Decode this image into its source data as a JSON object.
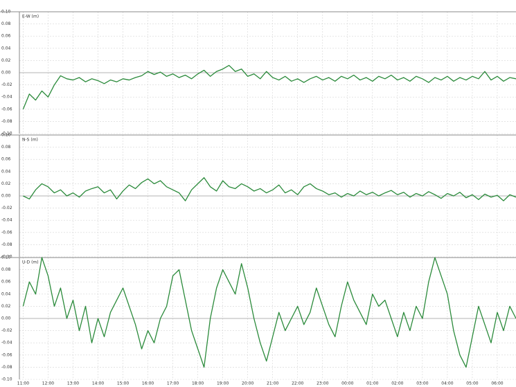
{
  "chart_data": [
    {
      "type": "line",
      "title": "E-W (m)",
      "xlim": [
        10.85,
        30.75
      ],
      "ylim": [
        -0.1,
        0.1
      ],
      "yticks": [
        {
          "value": 0.1,
          "label": "0.10"
        },
        {
          "value": 0.08,
          "label": "0.08"
        },
        {
          "value": 0.06,
          "label": "0.06"
        },
        {
          "value": 0.04,
          "label": "0.04"
        },
        {
          "value": 0.02,
          "label": "0.02"
        },
        {
          "value": 0,
          "label": "0.00"
        },
        {
          "value": -0.02,
          "label": "-0.02"
        },
        {
          "value": -0.04,
          "label": "-0.04"
        },
        {
          "value": -0.06,
          "label": "-0.06"
        },
        {
          "value": -0.08,
          "label": "-0.08"
        },
        {
          "value": -0.1,
          "label": "-0.10"
        }
      ],
      "grid": true,
      "x": [
        11,
        11.25,
        11.5,
        11.75,
        12,
        12.25,
        12.5,
        12.75,
        13,
        13.25,
        13.5,
        13.75,
        14,
        14.25,
        14.5,
        14.75,
        15,
        15.25,
        15.5,
        15.75,
        16,
        16.25,
        16.5,
        16.75,
        17,
        17.25,
        17.5,
        17.75,
        18,
        18.25,
        18.5,
        18.75,
        19,
        19.25,
        19.5,
        19.75,
        20,
        20.25,
        20.5,
        20.75,
        21,
        21.25,
        21.5,
        21.75,
        22,
        22.25,
        22.5,
        22.75,
        23,
        23.25,
        23.5,
        23.75,
        24,
        24.25,
        24.5,
        24.75,
        25,
        25.25,
        25.5,
        25.75,
        26,
        26.25,
        26.5,
        26.75,
        27,
        27.25,
        27.5,
        27.75,
        28,
        28.25,
        28.5,
        28.75,
        29,
        29.25,
        29.5,
        29.75,
        30,
        30.25,
        30.5,
        30.75
      ],
      "series": [
        {
          "color": "#2a8a3a",
          "values": [
            -0.06,
            -0.035,
            -0.045,
            -0.03,
            -0.04,
            -0.02,
            -0.005,
            -0.01,
            -0.012,
            -0.008,
            -0.015,
            -0.01,
            -0.013,
            -0.018,
            -0.012,
            -0.015,
            -0.01,
            -0.012,
            -0.008,
            -0.005,
            0.002,
            -0.003,
            0.001,
            -0.006,
            -0.002,
            -0.008,
            -0.004,
            -0.01,
            -0.002,
            0.004,
            -0.006,
            0.002,
            0.006,
            0.012,
            0.002,
            0.006,
            -0.006,
            -0.002,
            -0.01,
            0.002,
            -0.008,
            -0.012,
            -0.006,
            -0.014,
            -0.01,
            -0.016,
            -0.01,
            -0.006,
            -0.012,
            -0.008,
            -0.014,
            -0.006,
            -0.01,
            -0.004,
            -0.012,
            -0.008,
            -0.014,
            -0.006,
            -0.01,
            -0.004,
            -0.012,
            -0.008,
            -0.014,
            -0.006,
            -0.01,
            -0.016,
            -0.008,
            -0.012,
            -0.006,
            -0.014,
            -0.008,
            -0.012,
            -0.006,
            -0.01,
            0.002,
            -0.012,
            -0.006,
            -0.014,
            -0.008,
            -0.01
          ]
        }
      ]
    },
    {
      "type": "line",
      "title": "N-S (m)",
      "xlim": [
        10.85,
        30.75
      ],
      "ylim": [
        -0.1,
        0.1
      ],
      "yticks": [
        {
          "value": 0.1,
          "label": "0.10"
        },
        {
          "value": 0.08,
          "label": "0.08"
        },
        {
          "value": 0.06,
          "label": "0.06"
        },
        {
          "value": 0.04,
          "label": "0.04"
        },
        {
          "value": 0.02,
          "label": "0.02"
        },
        {
          "value": 0,
          "label": "0.00"
        },
        {
          "value": -0.02,
          "label": "-0.02"
        },
        {
          "value": -0.04,
          "label": "-0.04"
        },
        {
          "value": -0.06,
          "label": "-0.06"
        },
        {
          "value": -0.08,
          "label": "-0.08"
        },
        {
          "value": -0.1,
          "label": "-0.10"
        }
      ],
      "grid": true,
      "x": [
        11,
        11.25,
        11.5,
        11.75,
        12,
        12.25,
        12.5,
        12.75,
        13,
        13.25,
        13.5,
        13.75,
        14,
        14.25,
        14.5,
        14.75,
        15,
        15.25,
        15.5,
        15.75,
        16,
        16.25,
        16.5,
        16.75,
        17,
        17.25,
        17.5,
        17.75,
        18,
        18.25,
        18.5,
        18.75,
        19,
        19.25,
        19.5,
        19.75,
        20,
        20.25,
        20.5,
        20.75,
        21,
        21.25,
        21.5,
        21.75,
        22,
        22.25,
        22.5,
        22.75,
        23,
        23.25,
        23.5,
        23.75,
        24,
        24.25,
        24.5,
        24.75,
        25,
        25.25,
        25.5,
        25.75,
        26,
        26.25,
        26.5,
        26.75,
        27,
        27.25,
        27.5,
        27.75,
        28,
        28.25,
        28.5,
        28.75,
        29,
        29.25,
        29.5,
        29.75,
        30,
        30.25,
        30.5,
        30.75
      ],
      "series": [
        {
          "color": "#2a8a3a",
          "values": [
            0.0,
            -0.005,
            0.01,
            0.02,
            0.015,
            0.005,
            0.01,
            0.0,
            0.005,
            -0.002,
            0.008,
            0.012,
            0.015,
            0.005,
            0.01,
            -0.005,
            0.008,
            0.018,
            0.012,
            0.022,
            0.028,
            0.02,
            0.025,
            0.015,
            0.01,
            0.005,
            -0.008,
            0.01,
            0.02,
            0.03,
            0.015,
            0.008,
            0.025,
            0.015,
            0.012,
            0.02,
            0.015,
            0.008,
            0.012,
            0.005,
            0.01,
            0.018,
            0.005,
            0.01,
            0.002,
            0.015,
            0.02,
            0.012,
            0.008,
            0.002,
            0.005,
            -0.002,
            0.004,
            0.0,
            0.008,
            0.002,
            0.006,
            0.0,
            0.005,
            0.009,
            0.002,
            0.006,
            -0.002,
            0.004,
            0.0,
            0.007,
            0.002,
            -0.004,
            0.004,
            0.0,
            0.006,
            -0.003,
            0.002,
            -0.006,
            0.003,
            -0.002,
            0.001,
            -0.008,
            0.002,
            -0.002
          ]
        }
      ]
    },
    {
      "type": "line",
      "title": "U-D (m)",
      "xlim": [
        10.85,
        30.75
      ],
      "ylim": [
        -0.1,
        0.1
      ],
      "yticks": [
        {
          "value": 0.1,
          "label": "0.10"
        },
        {
          "value": 0.08,
          "label": "0.08"
        },
        {
          "value": 0.06,
          "label": "0.06"
        },
        {
          "value": 0.04,
          "label": "0.04"
        },
        {
          "value": 0.02,
          "label": "0.02"
        },
        {
          "value": 0,
          "label": "0.00"
        },
        {
          "value": -0.02,
          "label": "-0.02"
        },
        {
          "value": -0.04,
          "label": "-0.04"
        },
        {
          "value": -0.06,
          "label": "-0.06"
        },
        {
          "value": -0.08,
          "label": "-0.08"
        },
        {
          "value": -0.1,
          "label": "-0.10"
        }
      ],
      "xticks": [
        {
          "value": 11,
          "label": "11:00"
        },
        {
          "value": 12,
          "label": "12:00"
        },
        {
          "value": 13,
          "label": "13:00"
        },
        {
          "value": 14,
          "label": "14:00"
        },
        {
          "value": 15,
          "label": "15:00"
        },
        {
          "value": 16,
          "label": "16:00"
        },
        {
          "value": 17,
          "label": "17:00"
        },
        {
          "value": 18,
          "label": "18:00"
        },
        {
          "value": 19,
          "label": "19:00"
        },
        {
          "value": 20,
          "label": "20:00"
        },
        {
          "value": 21,
          "label": "21:00"
        },
        {
          "value": 22,
          "label": "22:00"
        },
        {
          "value": 23,
          "label": "23:00"
        },
        {
          "value": 24,
          "label": "00:00"
        },
        {
          "value": 25,
          "label": "01:00"
        },
        {
          "value": 26,
          "label": "02:00"
        },
        {
          "value": 27,
          "label": "03:00"
        },
        {
          "value": 28,
          "label": "04:00"
        },
        {
          "value": 29,
          "label": "05:00"
        },
        {
          "value": 30,
          "label": "06:00"
        }
      ],
      "grid": true,
      "x": [
        11,
        11.25,
        11.5,
        11.75,
        12,
        12.25,
        12.5,
        12.75,
        13,
        13.25,
        13.5,
        13.75,
        14,
        14.25,
        14.5,
        14.75,
        15,
        15.25,
        15.5,
        15.75,
        16,
        16.25,
        16.5,
        16.75,
        17,
        17.25,
        17.5,
        17.75,
        18,
        18.25,
        18.5,
        18.75,
        19,
        19.25,
        19.5,
        19.75,
        20,
        20.25,
        20.5,
        20.75,
        21,
        21.25,
        21.5,
        21.75,
        22,
        22.25,
        22.5,
        22.75,
        23,
        23.25,
        23.5,
        23.75,
        24,
        24.25,
        24.5,
        24.75,
        25,
        25.25,
        25.5,
        25.75,
        26,
        26.25,
        26.5,
        26.75,
        27,
        27.25,
        27.5,
        27.75,
        28,
        28.25,
        28.5,
        28.75,
        29,
        29.25,
        29.5,
        29.75,
        30,
        30.25,
        30.5,
        30.75
      ],
      "series": [
        {
          "color": "#2a8a3a",
          "values": [
            0.02,
            0.06,
            0.04,
            0.1,
            0.07,
            0.02,
            0.05,
            0.0,
            0.03,
            -0.02,
            0.02,
            -0.04,
            0.0,
            -0.03,
            0.01,
            0.03,
            0.05,
            0.02,
            -0.01,
            -0.05,
            -0.02,
            -0.04,
            0.0,
            0.02,
            0.07,
            0.08,
            0.03,
            -0.02,
            -0.05,
            -0.08,
            0.0,
            0.05,
            0.08,
            0.06,
            0.04,
            0.09,
            0.05,
            0.0,
            -0.04,
            -0.07,
            -0.03,
            0.01,
            -0.02,
            0.0,
            0.02,
            -0.01,
            0.01,
            0.05,
            0.02,
            -0.01,
            -0.03,
            0.02,
            0.06,
            0.03,
            0.01,
            -0.01,
            0.04,
            0.02,
            0.03,
            0.0,
            -0.03,
            0.01,
            -0.02,
            0.02,
            0.0,
            0.06,
            0.1,
            0.07,
            0.04,
            -0.02,
            -0.06,
            -0.08,
            -0.03,
            0.02,
            -0.01,
            -0.04,
            0.01,
            -0.02,
            0.02,
            0.0
          ]
        }
      ]
    }
  ]
}
